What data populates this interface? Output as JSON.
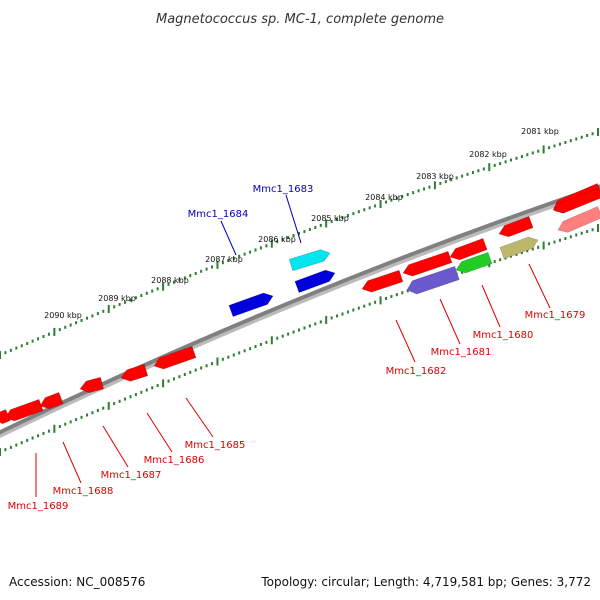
{
  "title": "Magnetococcus sp. MC-1, complete genome",
  "footer": {
    "accession": "Accession: NC_008576",
    "stats": "Topology: circular; Length: 4,719,581 bp; Genes: 3,772"
  },
  "kbp_ticks": [
    "2081 kbp",
    "2082 kbp",
    "2083 kbp",
    "2084 kbp",
    "2085 kbp",
    "2086 kbp",
    "2087 kbp",
    "2088 kbp",
    "2089 kbp",
    "2090 kbp"
  ],
  "colors": {
    "backbone": "#808080",
    "tick_green": "#2e7d32",
    "forward_label": "#0000bb",
    "reverse_label": "#dd0000"
  },
  "forward_genes": [
    {
      "label": "Mmc1_1683",
      "color": "#00e5ee"
    },
    {
      "label": "Mmc1_1684",
      "color": "#0000dd"
    },
    {
      "label": "",
      "color": "#0000dd"
    }
  ],
  "reverse_genes": [
    {
      "label": "Mmc1_1679",
      "color": "#ff0000"
    },
    {
      "label": "Mmc1_1680",
      "color": "#22cc22"
    },
    {
      "label": "Mmc1_1681",
      "color": "#6a5acd"
    },
    {
      "label": "Mmc1_1682",
      "color": "#ff0000"
    },
    {
      "label": "Mmc1_1685",
      "color": "#ff0000"
    },
    {
      "label": "Mmc1_1686",
      "color": "#ff0000"
    },
    {
      "label": "Mmc1_1687",
      "color": "#ff0000"
    },
    {
      "label": "Mmc1_1688",
      "color": "#ff0000"
    },
    {
      "label": "Mmc1_1689",
      "color": "#ff0000"
    }
  ],
  "unlabeled_genes": [
    {
      "color": "#ff0000"
    },
    {
      "color": "#ff0000"
    },
    {
      "color": "#ff0000"
    },
    {
      "color": "#ff0000"
    },
    {
      "color": "#ff0000"
    },
    {
      "color": "#ff7f7f"
    },
    {
      "color": "#bdb76b"
    }
  ]
}
